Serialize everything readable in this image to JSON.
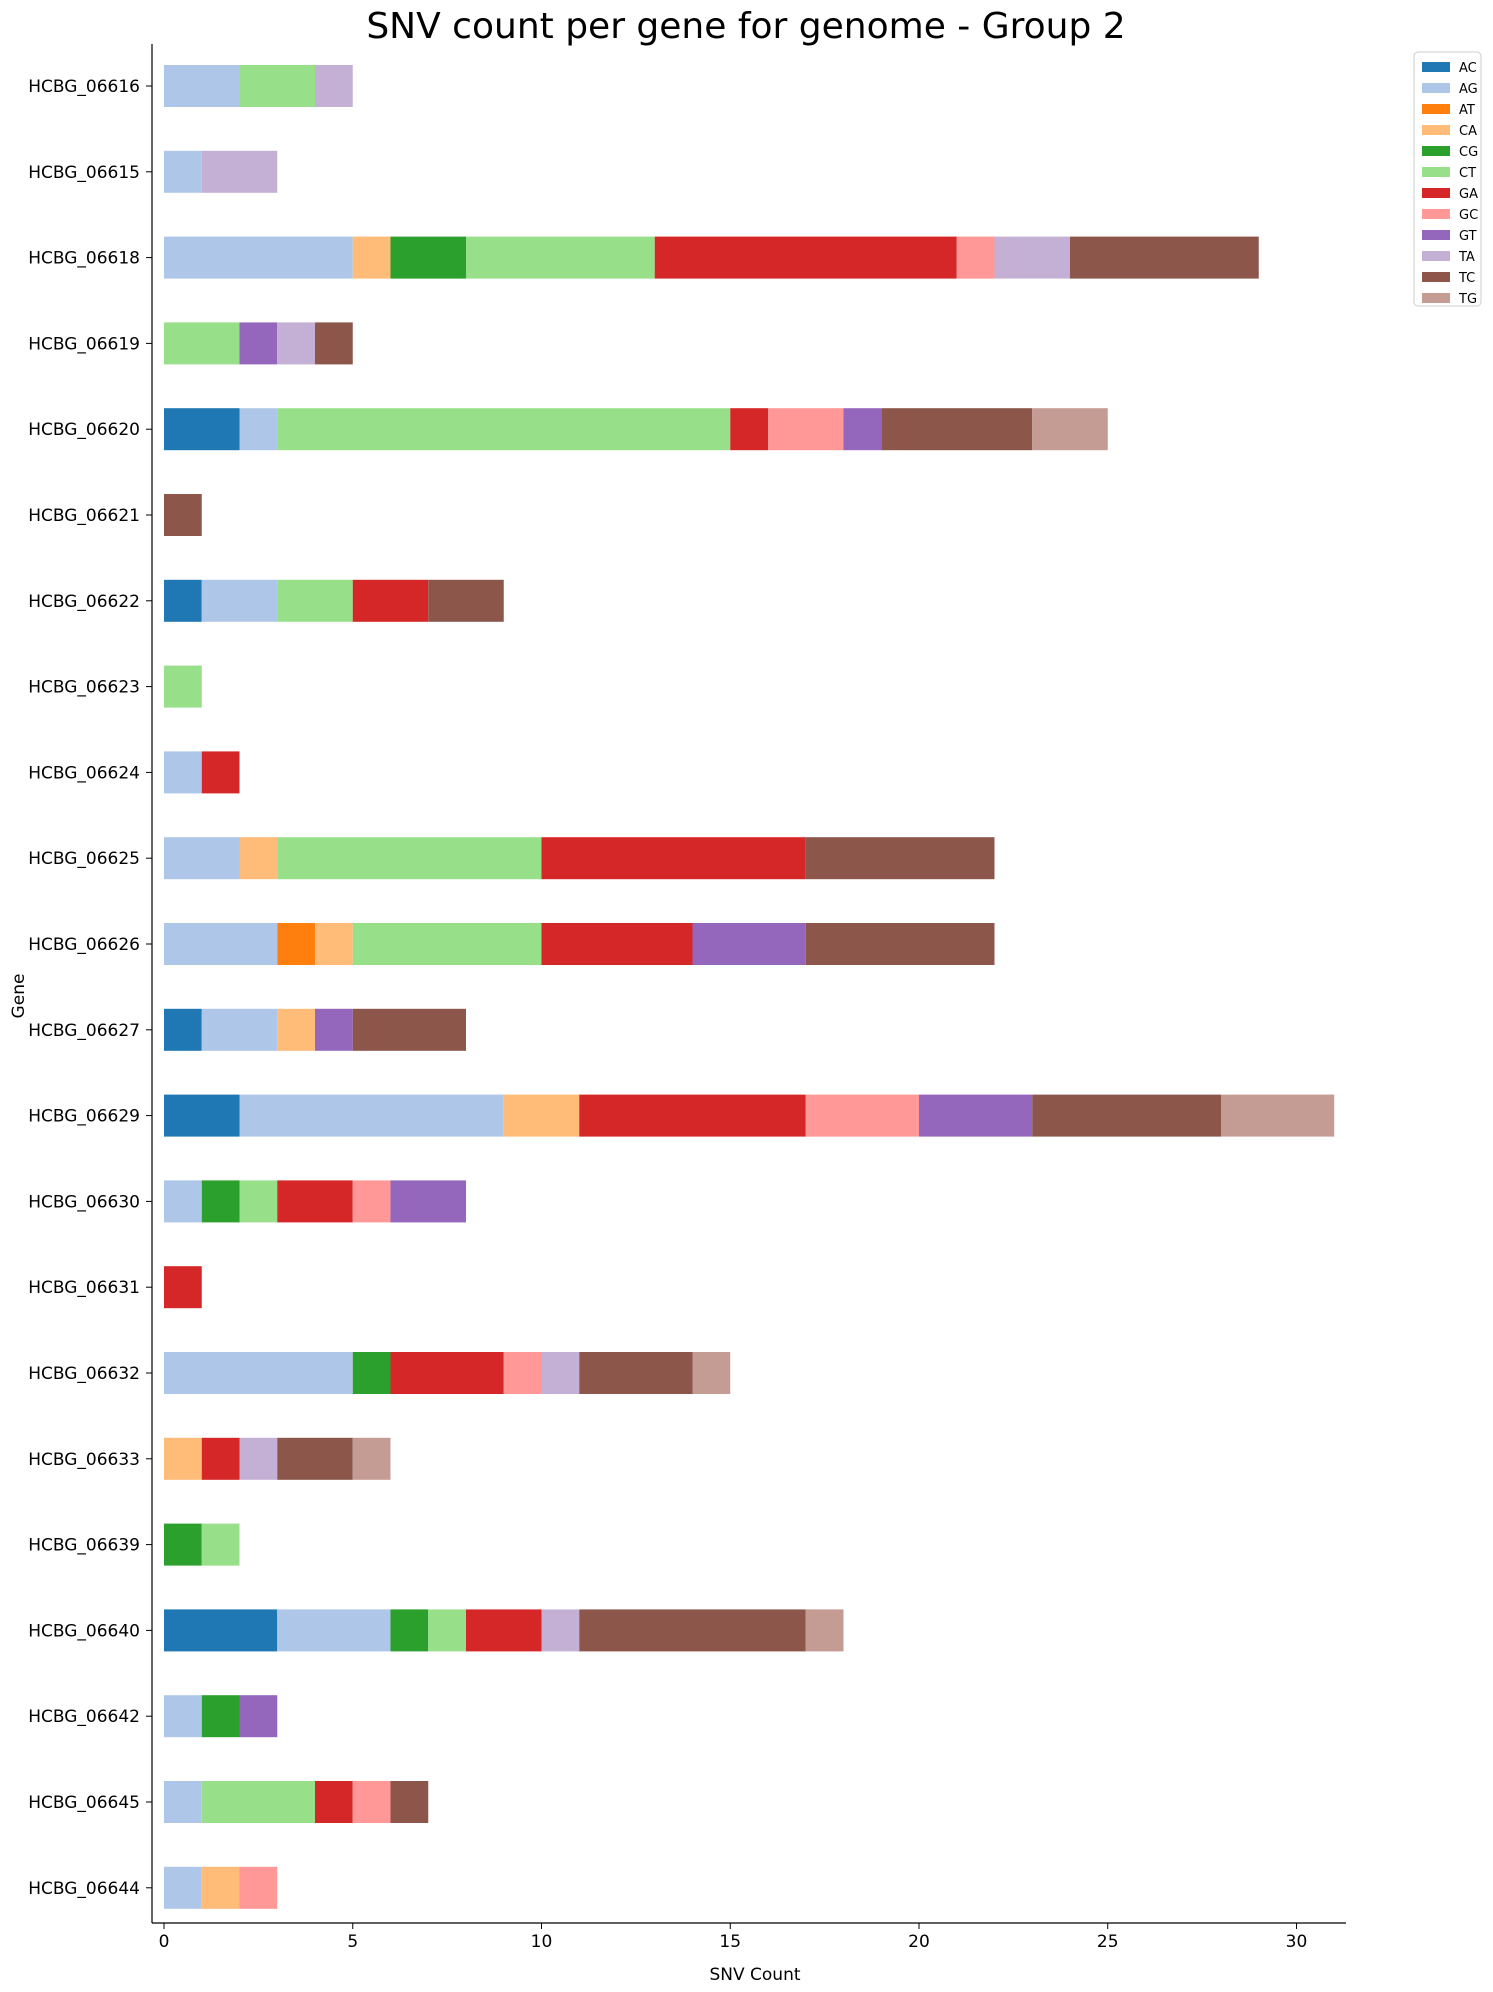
{
  "chart_data": {
    "type": "bar",
    "orientation": "horizontal",
    "stacked": true,
    "title": "SNV count per gene for genome - Group 2",
    "xlabel": "SNV Count",
    "ylabel": "Gene",
    "xlim": [
      0,
      31.3
    ],
    "xticks": [
      0,
      5,
      10,
      15,
      20,
      25,
      30
    ],
    "grid": false,
    "legend_position": "top-right, outside plot",
    "categories": [
      "HCBG_06616",
      "HCBG_06615",
      "HCBG_06618",
      "HCBG_06619",
      "HCBG_06620",
      "HCBG_06621",
      "HCBG_06622",
      "HCBG_06623",
      "HCBG_06624",
      "HCBG_06625",
      "HCBG_06626",
      "HCBG_06627",
      "HCBG_06629",
      "HCBG_06630",
      "HCBG_06631",
      "HCBG_06632",
      "HCBG_06633",
      "HCBG_06639",
      "HCBG_06640",
      "HCBG_06642",
      "HCBG_06645",
      "HCBG_06644"
    ],
    "series": [
      {
        "name": "AC",
        "color": "#1f77b4",
        "values": [
          0,
          0,
          0,
          0,
          2,
          0,
          1,
          0,
          0,
          0,
          0,
          1,
          2,
          0,
          0,
          0,
          0,
          0,
          3,
          0,
          0,
          0
        ]
      },
      {
        "name": "AG",
        "color": "#aec7e8",
        "values": [
          2,
          1,
          5,
          0,
          1,
          0,
          2,
          0,
          1,
          2,
          3,
          2,
          7,
          1,
          0,
          5,
          0,
          0,
          3,
          1,
          1,
          1
        ]
      },
      {
        "name": "AT",
        "color": "#ff7f0e",
        "values": [
          0,
          0,
          0,
          0,
          0,
          0,
          0,
          0,
          0,
          0,
          1,
          0,
          0,
          0,
          0,
          0,
          0,
          0,
          0,
          0,
          0,
          0
        ]
      },
      {
        "name": "CA",
        "color": "#ffbb78",
        "values": [
          0,
          0,
          1,
          0,
          0,
          0,
          0,
          0,
          0,
          1,
          1,
          1,
          2,
          0,
          0,
          0,
          1,
          0,
          0,
          0,
          0,
          1
        ]
      },
      {
        "name": "CG",
        "color": "#2ca02c",
        "values": [
          0,
          0,
          2,
          0,
          0,
          0,
          0,
          0,
          0,
          0,
          0,
          0,
          0,
          1,
          0,
          1,
          0,
          1,
          1,
          1,
          0,
          0
        ]
      },
      {
        "name": "CT",
        "color": "#98df8a",
        "values": [
          2,
          0,
          5,
          2,
          12,
          0,
          2,
          1,
          0,
          7,
          5,
          0,
          0,
          1,
          0,
          0,
          0,
          1,
          1,
          0,
          3,
          0
        ]
      },
      {
        "name": "GA",
        "color": "#d62728",
        "values": [
          0,
          0,
          8,
          0,
          1,
          0,
          2,
          0,
          1,
          7,
          4,
          0,
          6,
          2,
          1,
          3,
          1,
          0,
          2,
          0,
          1,
          0
        ]
      },
      {
        "name": "GC",
        "color": "#ff9896",
        "values": [
          0,
          0,
          1,
          0,
          2,
          0,
          0,
          0,
          0,
          0,
          0,
          0,
          3,
          1,
          0,
          1,
          0,
          0,
          0,
          0,
          1,
          1
        ]
      },
      {
        "name": "GT",
        "color": "#9467bd",
        "values": [
          0,
          0,
          0,
          1,
          1,
          0,
          0,
          0,
          0,
          0,
          3,
          1,
          3,
          2,
          0,
          0,
          0,
          0,
          0,
          1,
          0,
          0
        ]
      },
      {
        "name": "TA",
        "color": "#c5b0d5",
        "values": [
          1,
          2,
          2,
          1,
          0,
          0,
          0,
          0,
          0,
          0,
          0,
          0,
          0,
          0,
          0,
          1,
          1,
          0,
          1,
          0,
          0,
          0
        ]
      },
      {
        "name": "TC",
        "color": "#8c564b",
        "values": [
          0,
          0,
          5,
          1,
          4,
          1,
          2,
          0,
          0,
          5,
          5,
          3,
          5,
          0,
          0,
          3,
          2,
          0,
          6,
          0,
          1,
          0
        ]
      },
      {
        "name": "TG",
        "color": "#c49c94",
        "values": [
          0,
          0,
          0,
          0,
          2,
          0,
          0,
          0,
          0,
          0,
          0,
          0,
          3,
          0,
          0,
          1,
          1,
          0,
          1,
          0,
          0,
          0
        ]
      }
    ]
  }
}
